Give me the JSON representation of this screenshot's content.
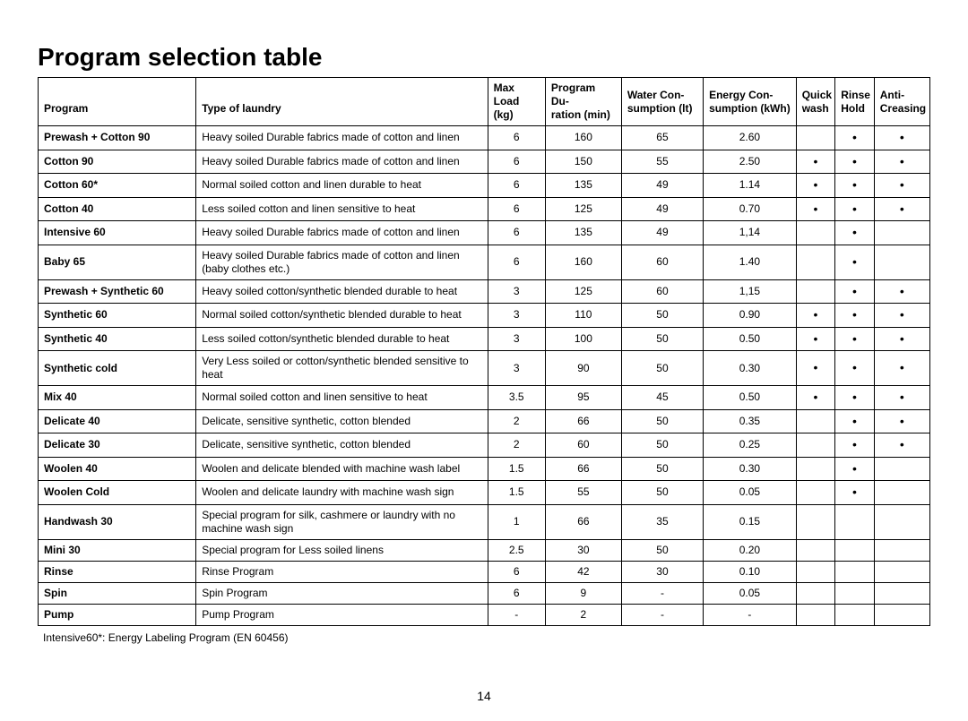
{
  "title": "Program selection table",
  "columns": [
    {
      "line1": "",
      "line2": "Program"
    },
    {
      "line1": "",
      "line2": "Type of laundry"
    },
    {
      "line1": "Max Load",
      "line2": "(kg)"
    },
    {
      "line1": "Program Du-",
      "line2": "ration (min)"
    },
    {
      "line1": "Water Con-",
      "line2": "sumption (lt)"
    },
    {
      "line1": "Energy Con-",
      "line2": "sumption (kWh)"
    },
    {
      "line1": "Quick",
      "line2": "wash"
    },
    {
      "line1": "Rinse",
      "line2": "Hold"
    },
    {
      "line1": "Anti-",
      "line2": "Creasing"
    }
  ],
  "rows": [
    {
      "program": "Prewash + Cotton 90",
      "type": "Heavy soiled Durable fabrics made of cotton and linen",
      "load": "6",
      "dur": "160",
      "water": "65",
      "energy": "2.60",
      "qw": "",
      "rh": "•",
      "ac": "•"
    },
    {
      "program": "Cotton 90",
      "type": "Heavy soiled Durable fabrics made of cotton and linen",
      "load": "6",
      "dur": "150",
      "water": "55",
      "energy": "2.50",
      "qw": "•",
      "rh": "•",
      "ac": "•"
    },
    {
      "program": "Cotton 60*",
      "type": "Normal soiled cotton and linen durable to heat",
      "load": "6",
      "dur": "135",
      "water": "49",
      "energy": "1.14",
      "qw": "•",
      "rh": "•",
      "ac": "•"
    },
    {
      "program": "Cotton 40",
      "type": "Less soiled cotton and linen  sensitive to heat",
      "load": "6",
      "dur": "125",
      "water": "49",
      "energy": "0.70",
      "qw": "•",
      "rh": "•",
      "ac": "•"
    },
    {
      "program": "Intensive 60",
      "type": "Heavy soiled Durable fabrics made of cotton and linen",
      "load": "6",
      "dur": "135",
      "water": "49",
      "energy": "1,14",
      "qw": "",
      "rh": "•",
      "ac": ""
    },
    {
      "program": "Baby 65",
      "type": "Heavy soiled Durable fabrics made of cotton and linen (baby clothes etc.)",
      "load": "6",
      "dur": "160",
      "water": "60",
      "energy": "1.40",
      "qw": "",
      "rh": "•",
      "ac": ""
    },
    {
      "program": "Prewash + Synthetic 60",
      "type": "Heavy soiled cotton/synthetic blended durable to heat",
      "load": "3",
      "dur": "125",
      "water": "60",
      "energy": "1,15",
      "qw": "",
      "rh": "•",
      "ac": "•"
    },
    {
      "program": "Synthetic 60",
      "type": "Normal soiled cotton/synthetic blended durable to heat",
      "load": "3",
      "dur": "110",
      "water": "50",
      "energy": "0.90",
      "qw": "•",
      "rh": "•",
      "ac": "•"
    },
    {
      "program": "Synthetic 40",
      "type": "Less soiled cotton/synthetic blended durable to heat",
      "load": "3",
      "dur": "100",
      "water": "50",
      "energy": "0.50",
      "qw": "•",
      "rh": "•",
      "ac": "•"
    },
    {
      "program": "Synthetic cold",
      "type": "Very Less soiled or cotton/synthetic blended sensitive to heat",
      "load": "3",
      "dur": "90",
      "water": "50",
      "energy": "0.30",
      "qw": "•",
      "rh": "•",
      "ac": "•"
    },
    {
      "program": "Mix 40",
      "type": "Normal soiled cotton and linen sensitive to heat",
      "load": "3.5",
      "dur": "95",
      "water": "45",
      "energy": "0.50",
      "qw": "•",
      "rh": "•",
      "ac": "•"
    },
    {
      "program": "Delicate 40",
      "type": "Delicate, sensitive synthetic, cotton blended",
      "load": "2",
      "dur": "66",
      "water": "50",
      "energy": "0.35",
      "qw": "",
      "rh": "•",
      "ac": "•"
    },
    {
      "program": "Delicate 30",
      "type": "Delicate, sensitive synthetic, cotton blended",
      "load": "2",
      "dur": "60",
      "water": "50",
      "energy": "0.25",
      "qw": "",
      "rh": "•",
      "ac": "•"
    },
    {
      "program": "Woolen 40",
      "type": "Woolen and delicate blended with machine wash label",
      "load": "1.5",
      "dur": "66",
      "water": "50",
      "energy": "0.30",
      "qw": "",
      "rh": "•",
      "ac": ""
    },
    {
      "program": "Woolen Cold",
      "type": "Woolen and delicate laundry with machine wash sign",
      "load": "1.5",
      "dur": "55",
      "water": "50",
      "energy": "0.05",
      "qw": "",
      "rh": "•",
      "ac": ""
    },
    {
      "program": "Handwash 30",
      "type": "Special program for silk, cashmere  or laundry with no machine wash sign",
      "load": "1",
      "dur": "66",
      "water": "35",
      "energy": "0.15",
      "qw": "",
      "rh": "",
      "ac": ""
    },
    {
      "program": "Mini 30",
      "type": "Special program for Less soiled linens",
      "load": "2.5",
      "dur": "30",
      "water": "50",
      "energy": "0.20",
      "qw": "",
      "rh": "",
      "ac": ""
    },
    {
      "program": "Rinse",
      "type": "Rinse Program",
      "load": "6",
      "dur": "42",
      "water": "30",
      "energy": "0.10",
      "qw": "",
      "rh": "",
      "ac": ""
    },
    {
      "program": "Spin",
      "type": "Spin Program",
      "load": "6",
      "dur": "9",
      "water": "-",
      "energy": "0.05",
      "qw": "",
      "rh": "",
      "ac": ""
    },
    {
      "program": "Pump",
      "type": "Pump Program",
      "load": "-",
      "dur": "2",
      "water": "-",
      "energy": "-",
      "qw": "",
      "rh": "",
      "ac": ""
    }
  ],
  "footnote": "Intensive60*:  Energy Labeling Program (EN 60456)",
  "pageNumber": "14"
}
